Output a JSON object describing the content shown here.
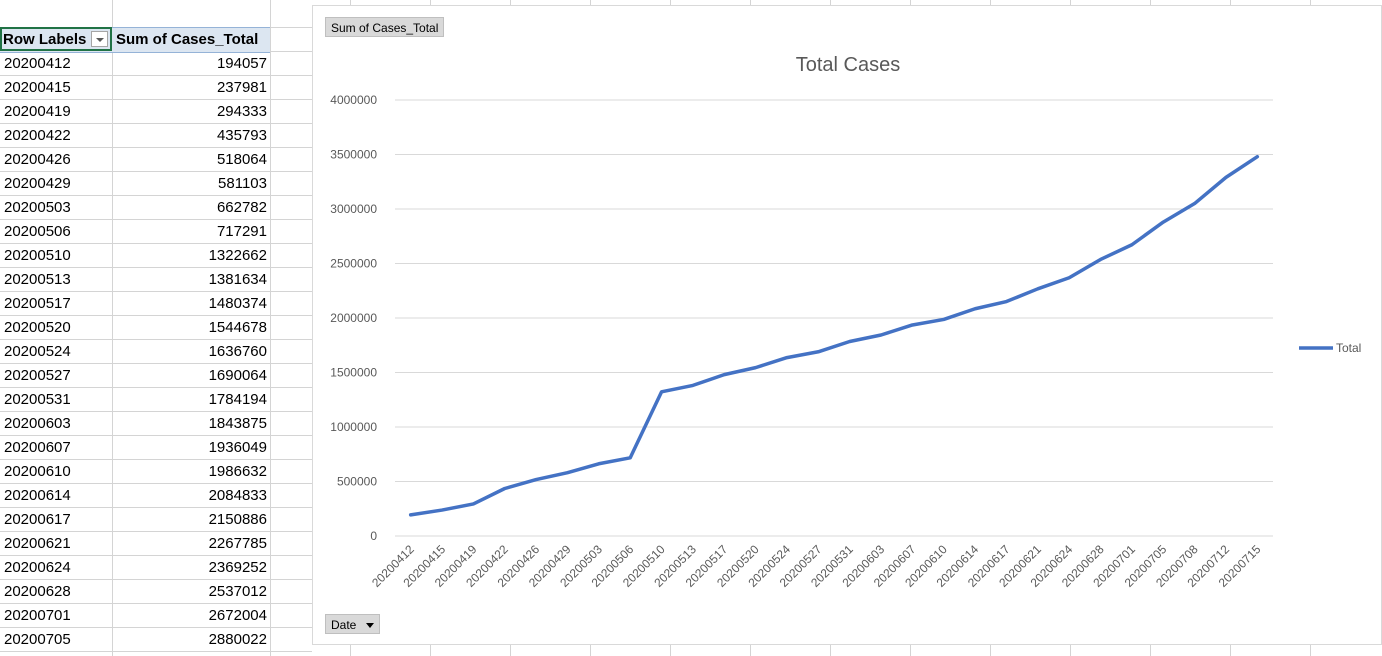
{
  "pivot": {
    "row_labels_header": "Row Labels",
    "sum_header": "Sum of Cases_Total",
    "rows": [
      {
        "date": "20200412",
        "value": "194057"
      },
      {
        "date": "20200415",
        "value": "237981"
      },
      {
        "date": "20200419",
        "value": "294333"
      },
      {
        "date": "20200422",
        "value": "435793"
      },
      {
        "date": "20200426",
        "value": "518064"
      },
      {
        "date": "20200429",
        "value": "581103"
      },
      {
        "date": "20200503",
        "value": "662782"
      },
      {
        "date": "20200506",
        "value": "717291"
      },
      {
        "date": "20200510",
        "value": "1322662"
      },
      {
        "date": "20200513",
        "value": "1381634"
      },
      {
        "date": "20200517",
        "value": "1480374"
      },
      {
        "date": "20200520",
        "value": "1544678"
      },
      {
        "date": "20200524",
        "value": "1636760"
      },
      {
        "date": "20200527",
        "value": "1690064"
      },
      {
        "date": "20200531",
        "value": "1784194"
      },
      {
        "date": "20200603",
        "value": "1843875"
      },
      {
        "date": "20200607",
        "value": "1936049"
      },
      {
        "date": "20200610",
        "value": "1986632"
      },
      {
        "date": "20200614",
        "value": "2084833"
      },
      {
        "date": "20200617",
        "value": "2150886"
      },
      {
        "date": "20200621",
        "value": "2267785"
      },
      {
        "date": "20200624",
        "value": "2369252"
      },
      {
        "date": "20200628",
        "value": "2537012"
      },
      {
        "date": "20200701",
        "value": "2672004"
      },
      {
        "date": "20200705",
        "value": "2880022"
      }
    ]
  },
  "chart": {
    "value_field_button": "Sum of Cases_Total",
    "axis_field_button": "Date"
  },
  "colors": {
    "series": "#4472c4",
    "grid": "#d9d9d9",
    "text": "#595959"
  },
  "chart_data": {
    "type": "line",
    "title": "Total Cases",
    "xlabel": "",
    "ylabel": "",
    "ylim": [
      0,
      4000000
    ],
    "yticks": [
      0,
      500000,
      1000000,
      1500000,
      2000000,
      2500000,
      3000000,
      3500000,
      4000000
    ],
    "grid": true,
    "legend_position": "right",
    "categories": [
      "20200412",
      "20200415",
      "20200419",
      "20200422",
      "20200426",
      "20200429",
      "20200503",
      "20200506",
      "20200510",
      "20200513",
      "20200517",
      "20200520",
      "20200524",
      "20200527",
      "20200531",
      "20200603",
      "20200607",
      "20200610",
      "20200614",
      "20200617",
      "20200621",
      "20200624",
      "20200628",
      "20200701",
      "20200705",
      "20200708",
      "20200712",
      "20200715"
    ],
    "series": [
      {
        "name": "Total",
        "values": [
          194057,
          237981,
          294333,
          435793,
          518064,
          581103,
          662782,
          717291,
          1322662,
          1381634,
          1480374,
          1544678,
          1636760,
          1690064,
          1784194,
          1843875,
          1936049,
          1986632,
          2084833,
          2150886,
          2267785,
          2369252,
          2537012,
          2672004,
          2880022,
          3050000,
          3290000,
          3480000
        ]
      }
    ]
  }
}
